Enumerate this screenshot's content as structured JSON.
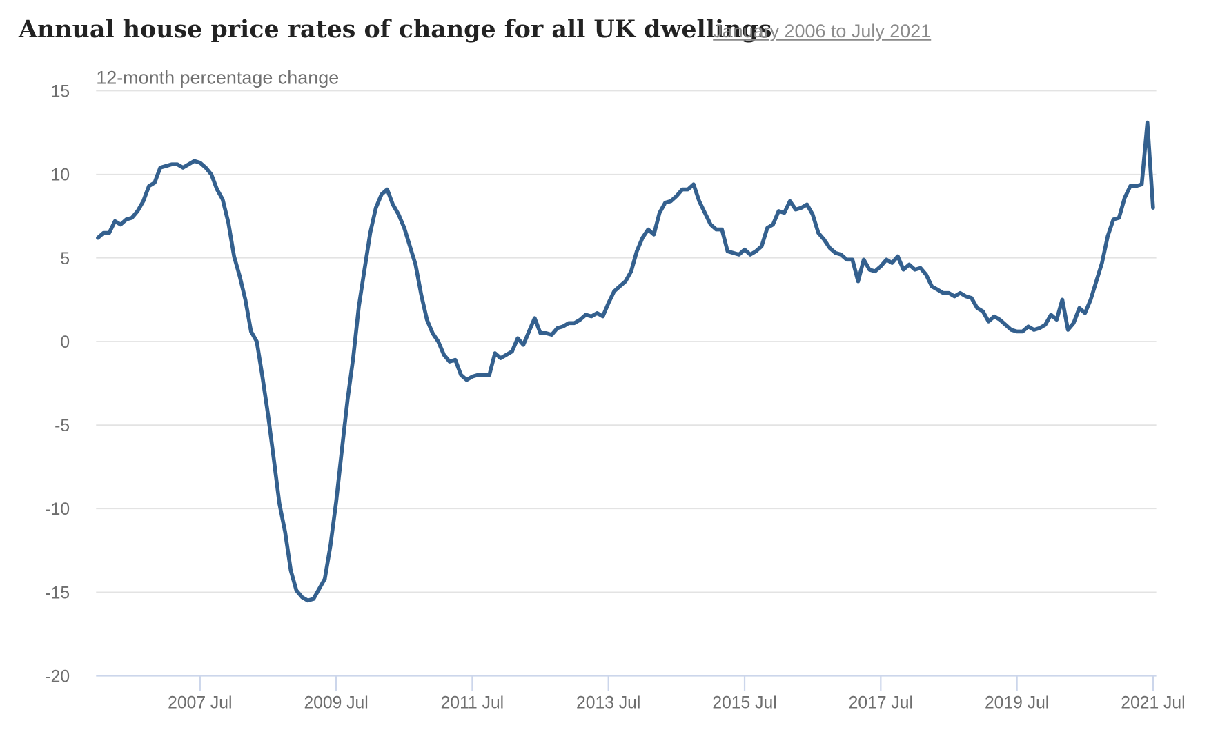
{
  "chart_data": {
    "type": "line",
    "title": "Annual house price rates of change for all UK dwellings",
    "subtitle": "January 2006 to July 2021",
    "ylabel": "12-month percentage change",
    "xlabel": "",
    "ylim": [
      -20,
      15
    ],
    "yticks": [
      "15",
      "10",
      "5",
      "0",
      "-5",
      "-10",
      "-15",
      "-20"
    ],
    "ytick_values": [
      15,
      10,
      5,
      0,
      -5,
      -10,
      -15,
      -20
    ],
    "xticks": [
      "2007 Jul",
      "2009 Jul",
      "2011 Jul",
      "2013 Jul",
      "2015 Jul",
      "2017 Jul",
      "2019 Jul",
      "2021 Jul"
    ],
    "xtick_month_index": [
      18,
      42,
      66,
      90,
      114,
      138,
      162,
      186
    ],
    "x_start": "2006-01",
    "x_end": "2021-07",
    "grid": true,
    "legend": "none",
    "series": [
      {
        "name": "12-month percentage change",
        "color": "#34608e",
        "values": [
          6.2,
          6.5,
          6.5,
          7.2,
          7.0,
          7.3,
          7.4,
          7.8,
          8.4,
          9.3,
          9.5,
          10.4,
          10.5,
          10.6,
          10.6,
          10.4,
          10.6,
          10.8,
          10.7,
          10.4,
          10.0,
          9.1,
          8.5,
          7.1,
          5.1,
          3.9,
          2.5,
          0.6,
          0.0,
          -2.1,
          -4.4,
          -7.0,
          -9.7,
          -11.4,
          -13.7,
          -14.9,
          -15.3,
          -15.5,
          -15.4,
          -14.8,
          -14.2,
          -12.2,
          -9.6,
          -6.5,
          -3.5,
          -1.0,
          2.1,
          4.3,
          6.5,
          8.0,
          8.8,
          9.1,
          8.2,
          7.6,
          6.8,
          5.7,
          4.6,
          2.8,
          1.3,
          0.5,
          0.0,
          -0.8,
          -1.2,
          -1.1,
          -2.0,
          -2.3,
          -2.1,
          -2.0,
          -2.0,
          -2.0,
          -0.7,
          -1.0,
          -0.8,
          -0.6,
          0.2,
          -0.2,
          0.6,
          1.4,
          0.5,
          0.5,
          0.4,
          0.8,
          0.9,
          1.1,
          1.1,
          1.3,
          1.6,
          1.5,
          1.7,
          1.5,
          2.3,
          3.0,
          3.3,
          3.6,
          4.2,
          5.4,
          6.2,
          6.7,
          6.4,
          7.7,
          8.3,
          8.4,
          8.7,
          9.1,
          9.1,
          9.4,
          8.4,
          7.7,
          7.0,
          6.7,
          6.7,
          5.4,
          5.3,
          5.2,
          5.5,
          5.2,
          5.4,
          5.7,
          6.8,
          7.0,
          7.8,
          7.7,
          8.4,
          7.9,
          8.0,
          8.2,
          7.6,
          6.5,
          6.1,
          5.6,
          5.3,
          5.2,
          4.9,
          4.9,
          3.6,
          4.9,
          4.3,
          4.2,
          4.5,
          4.9,
          4.7,
          5.1,
          4.3,
          4.6,
          4.3,
          4.4,
          4.0,
          3.3,
          3.1,
          2.9,
          2.9,
          2.7,
          2.9,
          2.7,
          2.6,
          2.0,
          1.8,
          1.2,
          1.5,
          1.3,
          1.0,
          0.7,
          0.6,
          0.6,
          0.9,
          0.7,
          0.8,
          1.0,
          1.6,
          1.3,
          2.5,
          0.7,
          1.1,
          2.0,
          1.7,
          2.5,
          3.6,
          4.7,
          6.3,
          7.3,
          7.4,
          8.6,
          9.3,
          9.3,
          9.4,
          13.1,
          8.0
        ]
      }
    ]
  }
}
